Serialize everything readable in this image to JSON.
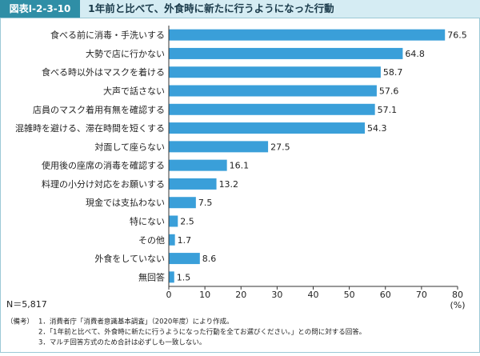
{
  "chart_data": {
    "type": "bar",
    "orientation": "horizontal",
    "figure_label": "図表Ⅰ-2-3-10",
    "title": "1年前と比べて、外食時に新たに行うようになった行動",
    "categories": [
      "食べる前に消毒・手洗いする",
      "大勢で店に行かない",
      "食べる時以外はマスクを着ける",
      "大声で話さない",
      "店員のマスク着用有無を確認する",
      "混雑時を避ける、滞在時間を短くする",
      "対面して座らない",
      "使用後の座席の消毒を確認する",
      "料理の小分け対応をお願いする",
      "現金では支払わない",
      "特にない",
      "その他",
      "外食をしていない",
      "無回答"
    ],
    "values": [
      76.5,
      64.8,
      58.7,
      57.6,
      57.1,
      54.3,
      27.5,
      16.1,
      13.2,
      7.5,
      2.5,
      1.7,
      8.6,
      1.5
    ],
    "color": "#3a9fd9",
    "xlim": [
      0,
      80
    ],
    "xticks": [
      0,
      10,
      20,
      30,
      40,
      50,
      60,
      70,
      80
    ],
    "x_unit": "(%)",
    "sample_size": "N＝5,817",
    "notes_label": "（備考）",
    "notes": [
      "1．消費者庁「消費者意識基本調査」（2020年度）により作成。",
      "2．「1年前と比べて、外食時に新たに行うようになった行動を全てお選びください。」との問に対する回答。",
      "3．マルチ回答方式のため合計は必ずしも一致しない。"
    ]
  }
}
